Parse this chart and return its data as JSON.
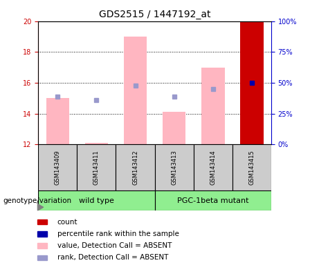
{
  "title": "GDS2515 / 1447192_at",
  "samples": [
    "GSM143409",
    "GSM143411",
    "GSM143412",
    "GSM143413",
    "GSM143414",
    "GSM143415"
  ],
  "ylim_left": [
    12,
    20
  ],
  "ylim_right": [
    0,
    100
  ],
  "yticks_left": [
    12,
    14,
    16,
    18,
    20
  ],
  "yticks_right": [
    0,
    25,
    50,
    75,
    100
  ],
  "bar_bottoms": [
    12,
    12,
    12,
    12,
    12,
    12
  ],
  "bar_tops_pink": [
    15.0,
    12.1,
    19.0,
    14.1,
    17.0,
    20.0
  ],
  "rank_sq_y_left": [
    15.1,
    14.9,
    15.8,
    15.1,
    15.6
  ],
  "last_bar_color": "#CC0000",
  "pink_bar_color": "#FFB6C1",
  "rank_square_color": "#9999CC",
  "blue_square_color": "#0000AA",
  "blue_square_pct": 50,
  "left_axis_color": "#CC0000",
  "right_axis_color": "#0000CC",
  "wt_label": "wild type",
  "pgc_label": "PGC-1beta mutant",
  "group_row_label": "genotype/variation",
  "legend_items": [
    {
      "color": "#CC0000",
      "label": "count"
    },
    {
      "color": "#0000AA",
      "label": "percentile rank within the sample"
    },
    {
      "color": "#FFB6C1",
      "label": "value, Detection Call = ABSENT"
    },
    {
      "color": "#9999CC",
      "label": "rank, Detection Call = ABSENT"
    }
  ],
  "title_fontsize": 10,
  "axis_label_fontsize": 7,
  "sample_label_fontsize": 6,
  "group_label_fontsize": 8,
  "legend_fontsize": 7.5,
  "group_row_fontsize": 7.5
}
